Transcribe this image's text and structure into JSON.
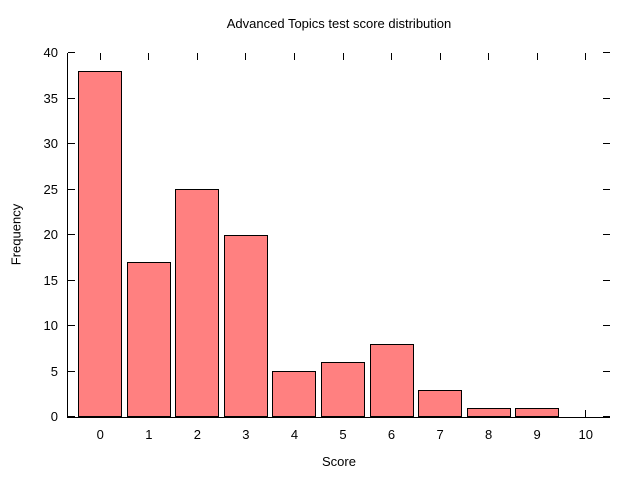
{
  "chart_data": {
    "type": "bar",
    "title": "Advanced Topics test score distribution",
    "xlabel": "Score",
    "ylabel": "Frequency",
    "categories": [
      "0",
      "1",
      "2",
      "3",
      "4",
      "5",
      "6",
      "7",
      "8",
      "9",
      "10"
    ],
    "values": [
      38,
      17,
      25,
      20,
      5,
      6,
      8,
      3,
      1,
      1,
      0
    ],
    "ylim": [
      0,
      40
    ],
    "yticks": [
      0,
      5,
      10,
      15,
      20,
      25,
      30,
      35,
      40
    ],
    "grid": false,
    "legend": "none",
    "bar_color": "#ff8080",
    "bar_border_color": "#000000",
    "axis_color": "#000000",
    "background_color": "#ffffff",
    "tick_style": "inward, mirrored on top and right; top and right border lines not drawn"
  }
}
